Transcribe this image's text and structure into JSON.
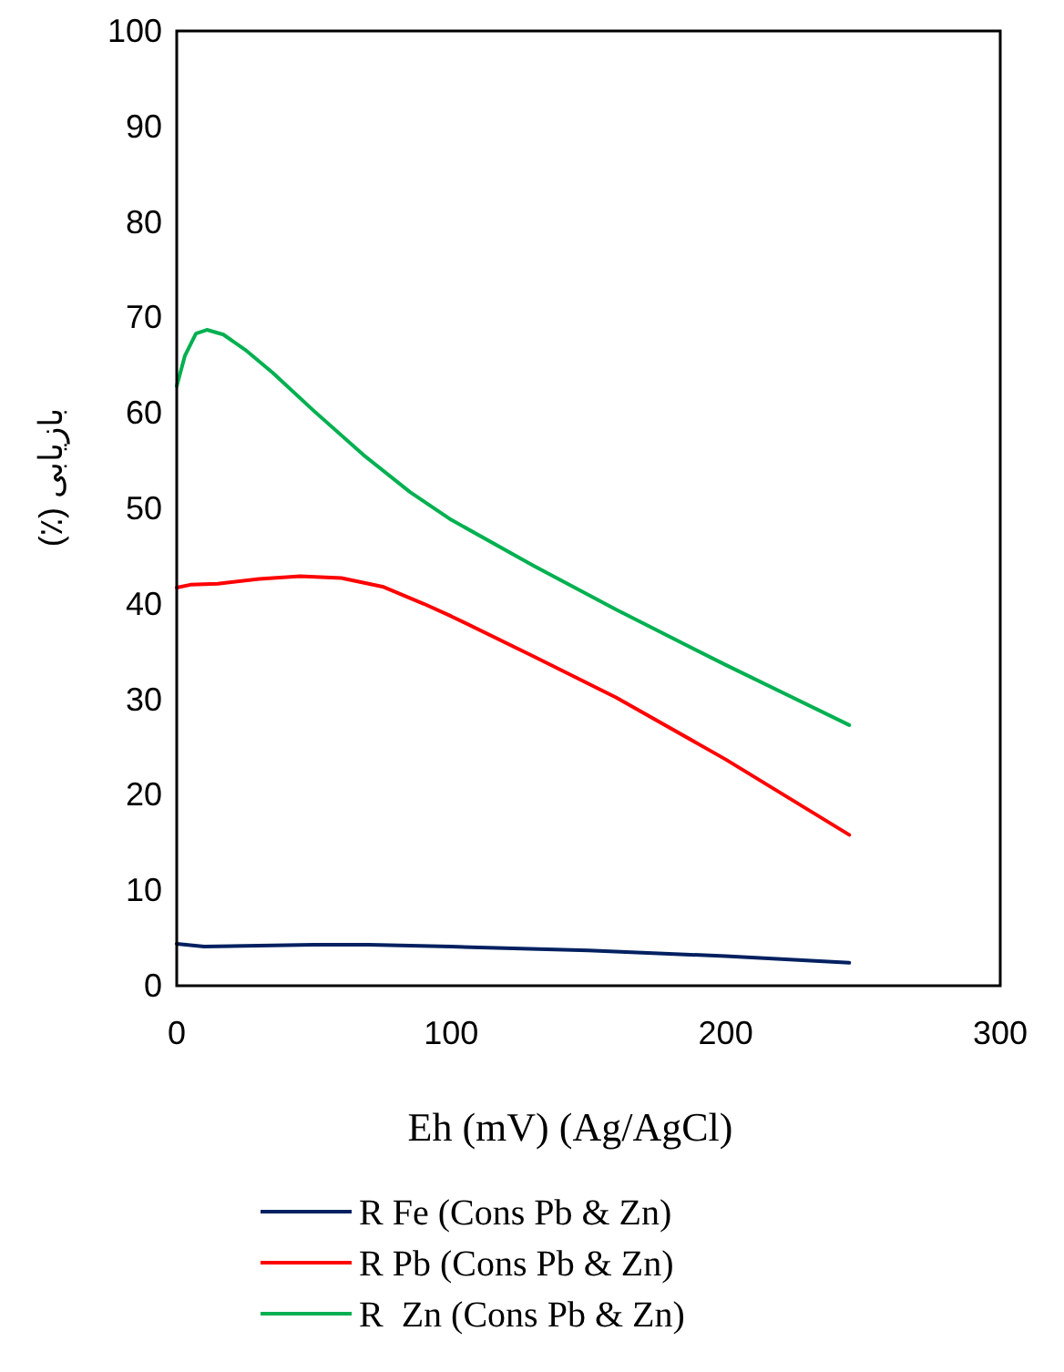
{
  "chart_data": {
    "type": "line",
    "xlabel": "Eh (mV) (Ag/AgCl)",
    "ylabel": "بازیابی (٪)",
    "xlim": [
      0,
      300
    ],
    "xticks": [
      0,
      100,
      200,
      300
    ],
    "ylim": [
      0,
      100
    ],
    "yticks": [
      0,
      10,
      20,
      30,
      40,
      50,
      60,
      70,
      80,
      90,
      100
    ],
    "grid": false,
    "legend": "bottom",
    "marker": "none",
    "line_style": "solid",
    "series": [
      {
        "name": "R Fe (Cons Pb & Zn)",
        "color": "#002060",
        "x": [
          0,
          10,
          30,
          50,
          70,
          100,
          150,
          200,
          245
        ],
        "values": [
          4.4,
          4.1,
          4.2,
          4.3,
          4.3,
          4.1,
          3.7,
          3.1,
          2.4
        ]
      },
      {
        "name": "R Pb (Cons Pb & Zn)",
        "color": "#ff0000",
        "x": [
          0,
          5,
          15,
          30,
          45,
          60,
          75,
          90,
          100,
          130,
          160,
          200,
          245
        ],
        "values": [
          41.7,
          42.0,
          42.1,
          42.6,
          42.9,
          42.7,
          41.8,
          40.0,
          38.7,
          34.5,
          30.2,
          23.7,
          15.8
        ]
      },
      {
        "name": "R  Zn (Cons Pb & Zn)",
        "color": "#00b050",
        "x": [
          0,
          3,
          7,
          11,
          17,
          25,
          35,
          50,
          68,
          85,
          100,
          130,
          160,
          200,
          245
        ],
        "values": [
          62.8,
          66.0,
          68.3,
          68.7,
          68.2,
          66.6,
          64.2,
          60.2,
          55.6,
          51.7,
          48.8,
          44.0,
          39.4,
          33.6,
          27.3
        ]
      }
    ]
  }
}
